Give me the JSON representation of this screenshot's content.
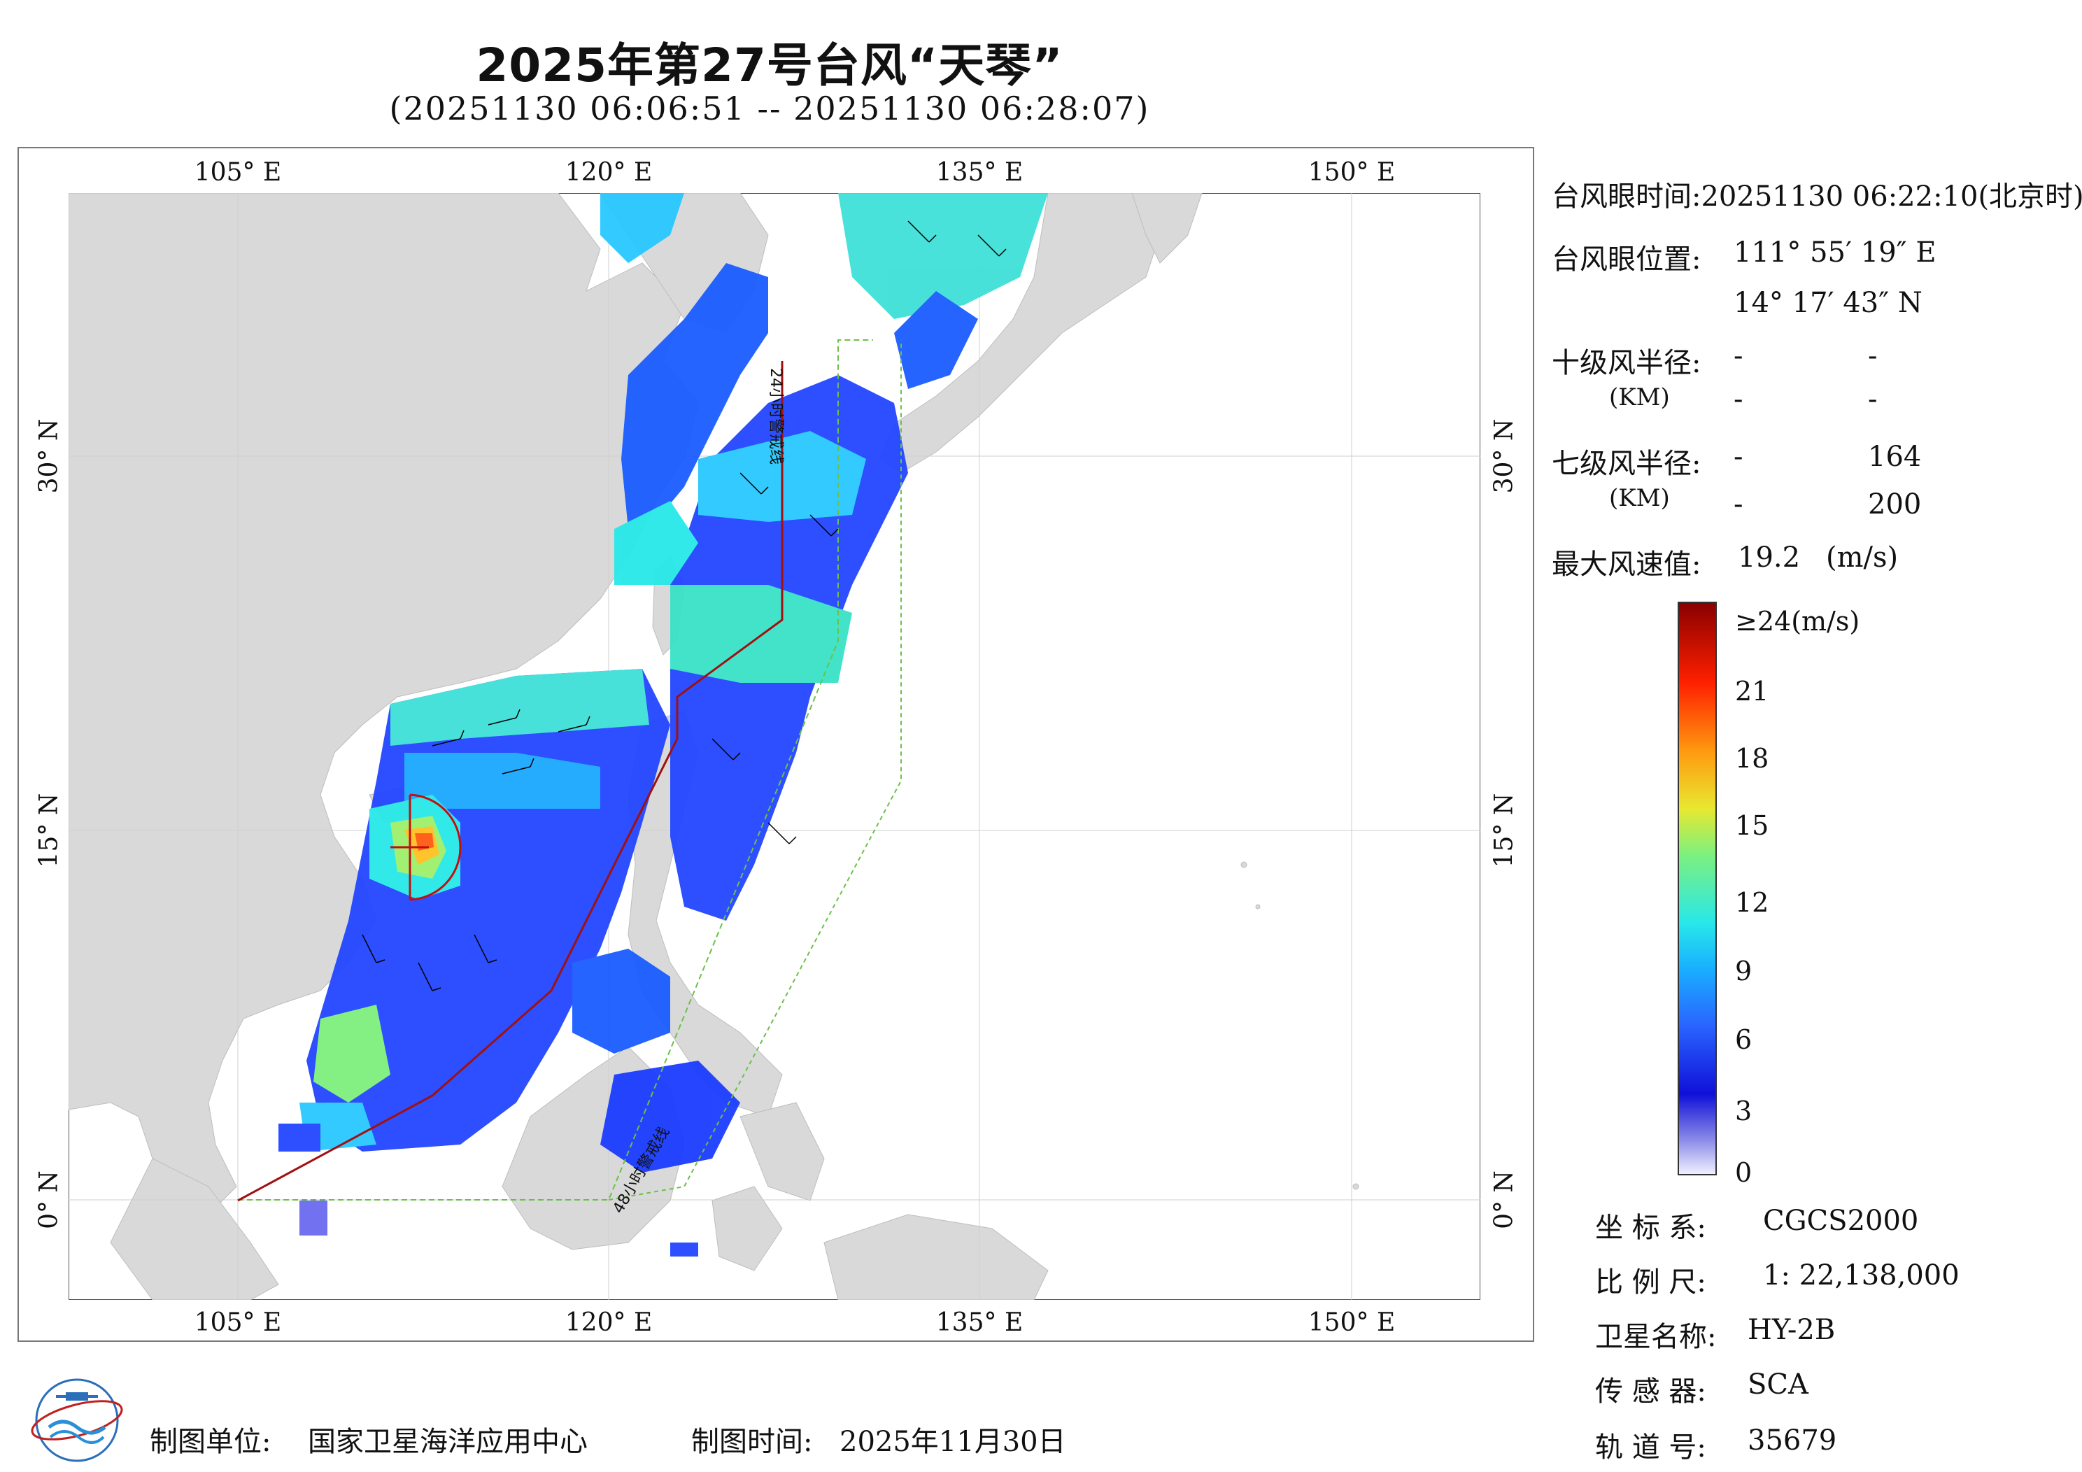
{
  "header": {
    "title": "2025年第27号台风“天琴”",
    "subtitle": "(20251130 06:06:51 -- 20251130 06:28:07)"
  },
  "map": {
    "lon_ticks": [
      "105° E",
      "120° E",
      "135° E",
      "150° E"
    ],
    "lat_ticks": [
      "30° N",
      "15° N",
      "0° N"
    ],
    "warning_line_24h": "24小时警戒线",
    "warning_line_48h": "48小时警戒线",
    "colors": {
      "land": "#d9d9d9",
      "sea": "#ffffff",
      "warning_24h": "#a01010",
      "warning_48h": "#6cc04a"
    }
  },
  "info": {
    "eye_time_label": "台风眼时间:",
    "eye_time_value": "20251130 06:22:10(北京时)",
    "eye_pos_label": "台风眼位置:",
    "eye_lon": "111° 55′ 19″ E",
    "eye_lat": "14° 17′ 43″ N",
    "r10_label": "十级风半径:",
    "r10_unit": "(KM)",
    "r10_values": [
      "-",
      "-",
      "-",
      "-"
    ],
    "r7_label": "七级风半径:",
    "r7_unit": "(KM)",
    "r7_values": [
      "-",
      "164",
      "-",
      "200"
    ],
    "max_wind_label": "最大风速值:",
    "max_wind_value": "19.2",
    "max_wind_unit": "(m/s)"
  },
  "colorbar": {
    "labels": [
      "≥24(m/s)",
      "21",
      "18",
      "15",
      "12",
      "9",
      "6",
      "3",
      "0"
    ],
    "colors": [
      "#f0f0ff",
      "#8a8ae8",
      "#1010d8",
      "#2a64ff",
      "#19b0ff",
      "#28e8e8",
      "#7ef07e",
      "#e8e830",
      "#ff9a10",
      "#ff2000",
      "#8a0000"
    ]
  },
  "meta": {
    "crs_label": "坐 标 系:",
    "crs_value": "CGCS2000",
    "scale_label": "比 例 尺:",
    "scale_value": "1: 22,138,000",
    "satellite_label": "卫星名称:",
    "satellite_value": "HY-2B",
    "sensor_label": "传 感 器:",
    "sensor_value": "SCA",
    "orbit_label": "轨 道 号:",
    "orbit_value": "35679"
  },
  "footer": {
    "unit_label": "制图单位:",
    "unit_value": "国家卫星海洋应用中心",
    "time_label": "制图时间:",
    "time_value": "2025年11月30日"
  }
}
